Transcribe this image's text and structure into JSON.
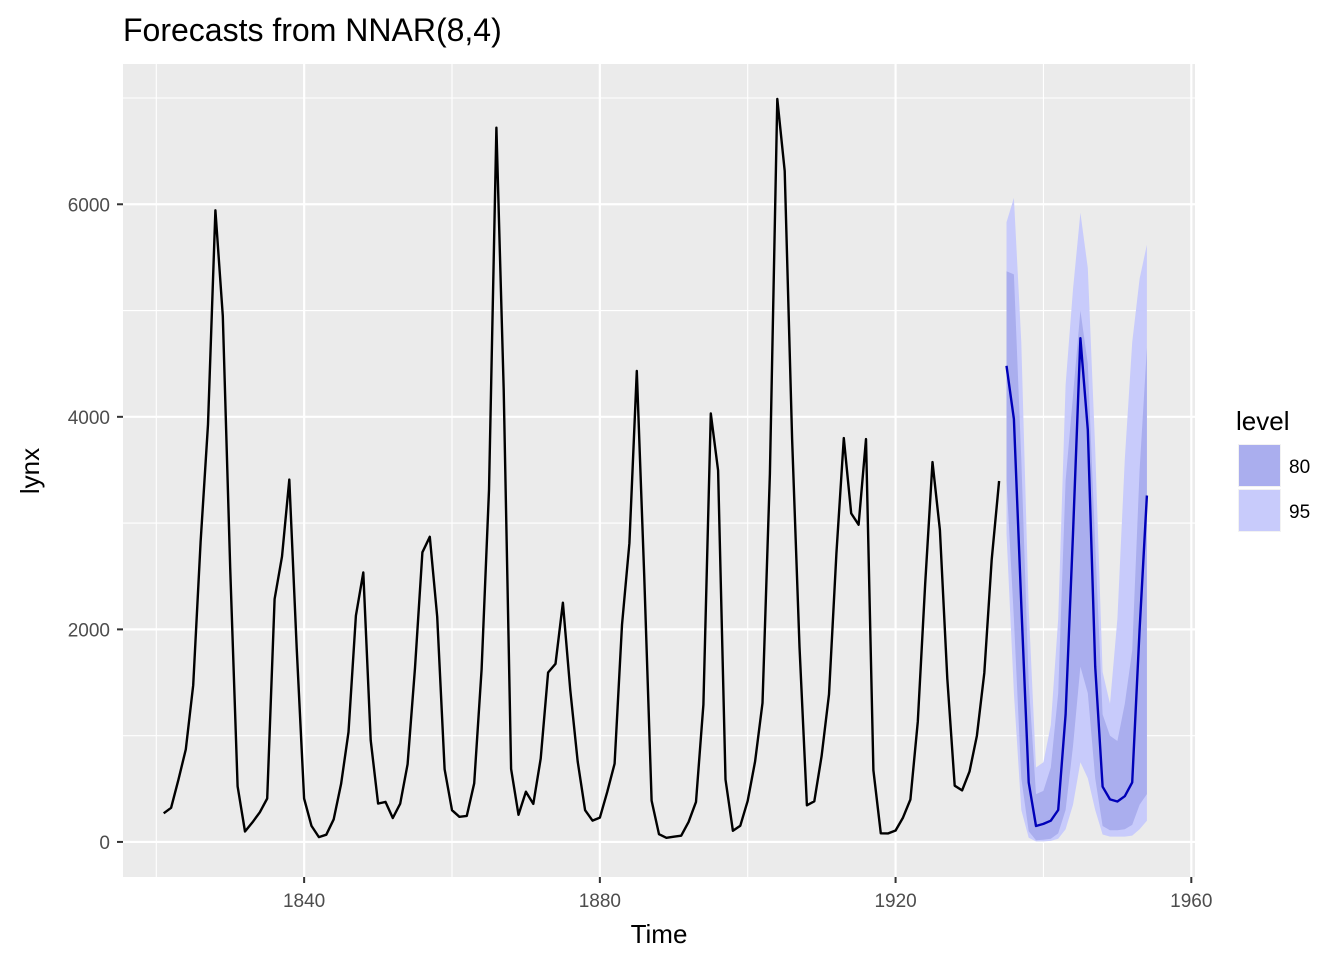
{
  "chart_data": {
    "type": "line",
    "title": "Forecasts from NNAR(8,4)",
    "xlabel": "Time",
    "ylabel": "lynx",
    "xlim": [
      1815.5,
      1960.5
    ],
    "ylim": [
      -330,
      7320
    ],
    "x_ticks": [
      1840,
      1880,
      1920,
      1960
    ],
    "x_tick_labels": [
      "1840",
      "1880",
      "1920",
      "1960"
    ],
    "y_ticks": [
      0,
      2000,
      4000,
      6000
    ],
    "y_tick_labels": [
      "0",
      "2000",
      "4000",
      "6000"
    ],
    "grid": true,
    "legend": {
      "title": "level",
      "position": "right",
      "entries": [
        {
          "label": "80",
          "color": "#aaaeee"
        },
        {
          "label": "95",
          "color": "#c8cbfb"
        }
      ]
    },
    "history": {
      "start": 1821,
      "values": [
        269,
        321,
        585,
        871,
        1475,
        2821,
        3928,
        5943,
        4950,
        2577,
        523,
        98,
        184,
        279,
        409,
        2285,
        2685,
        3409,
        1824,
        409,
        151,
        45,
        68,
        213,
        546,
        1033,
        2129,
        2536,
        957,
        361,
        377,
        225,
        360,
        731,
        1638,
        2725,
        2871,
        2119,
        684,
        299,
        236,
        245,
        552,
        1623,
        3311,
        6721,
        4254,
        687,
        255,
        473,
        358,
        784,
        1594,
        1676,
        2251,
        1426,
        756,
        299,
        201,
        229,
        469,
        736,
        2042,
        2811,
        4431,
        2511,
        389,
        73,
        39,
        49,
        59,
        188,
        377,
        1292,
        4031,
        3495,
        587,
        105,
        153,
        387,
        758,
        1307,
        3465,
        6991,
        6313,
        3794,
        1836,
        345,
        382,
        808,
        1388,
        2713,
        3800,
        3091,
        2985,
        3790,
        674,
        81,
        80,
        108,
        229,
        399,
        1132,
        2432,
        3574,
        2935,
        1537,
        529,
        485,
        662,
        1000,
        1590,
        2657,
        3396
      ],
      "color": "#000000"
    },
    "forecast": {
      "start": 1935,
      "mean": [
        4480,
        3980,
        2230,
        560,
        150,
        170,
        200,
        300,
        1200,
        2900,
        4740,
        3880,
        1650,
        520,
        400,
        380,
        430,
        560,
        2000,
        3260
      ],
      "lo80": [
        3400,
        2100,
        600,
        100,
        15,
        20,
        30,
        80,
        300,
        900,
        1650,
        1400,
        600,
        150,
        110,
        110,
        120,
        160,
        350,
        450
      ],
      "hi80": [
        5370,
        5340,
        3600,
        1500,
        450,
        480,
        700,
        1400,
        3400,
        4200,
        5000,
        4500,
        2800,
        1200,
        1000,
        950,
        1300,
        1800,
        3500,
        4650
      ],
      "lo95": [
        2900,
        1400,
        300,
        40,
        5,
        5,
        10,
        30,
        120,
        350,
        750,
        600,
        300,
        70,
        50,
        50,
        50,
        60,
        120,
        200
      ],
      "hi95": [
        5830,
        6060,
        4700,
        2200,
        700,
        750,
        1100,
        2100,
        4300,
        5200,
        5920,
        5400,
        3700,
        1600,
        1300,
        2100,
        3600,
        4700,
        5300,
        5620
      ],
      "mean_color": "#0000b8",
      "band80_color": "#aaaeee",
      "band95_color": "#c8cbfb"
    },
    "panel_color": "#ebebeb",
    "grid_color": "#ffffff"
  }
}
